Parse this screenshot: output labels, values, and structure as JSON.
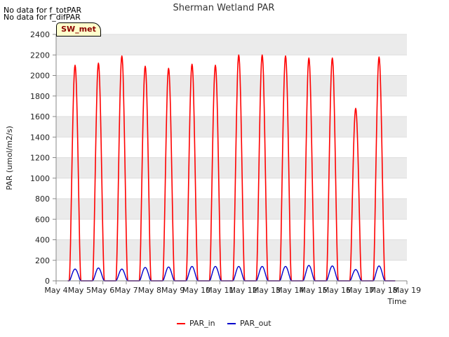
{
  "notes": [
    "No data for f_totPAR",
    "No data for f_difPAR"
  ],
  "badge": "SW_met",
  "chart_data": {
    "type": "line",
    "title": "Sherman Wetland PAR",
    "xlabel": "Time",
    "ylabel": "PAR (umol/m2/s)",
    "ylim": [
      0,
      2400
    ],
    "yticks": [
      0,
      200,
      400,
      600,
      800,
      1000,
      1200,
      1400,
      1600,
      1800,
      2000,
      2200,
      2400
    ],
    "xlim": [
      4,
      19
    ],
    "xticks": [
      "May 4",
      "May 5",
      "May 6",
      "May 7",
      "May 8",
      "May 9",
      "May 10",
      "May 11",
      "May 12",
      "May 13",
      "May 14",
      "May 15",
      "May 16",
      "May 17",
      "May 18",
      "May 19"
    ],
    "day_starts": [
      4.5,
      5.5,
      6.5,
      7.5,
      8.5,
      9.5,
      10.5,
      11.5,
      12.5,
      13.5,
      14.5,
      15.5,
      16.5,
      17.5,
      18.5
    ],
    "series": [
      {
        "name": "PAR_in",
        "color": "#ff0000",
        "daily_peaks": [
          2100,
          2120,
          2190,
          2090,
          2070,
          2110,
          2100,
          2200,
          2200,
          2190,
          2170,
          2170,
          1680,
          2180
        ]
      },
      {
        "name": "PAR_out",
        "color": "#0000cc",
        "daily_peaks": [
          115,
          125,
          115,
          130,
          135,
          140,
          140,
          140,
          140,
          140,
          150,
          145,
          110,
          145
        ]
      }
    ]
  }
}
